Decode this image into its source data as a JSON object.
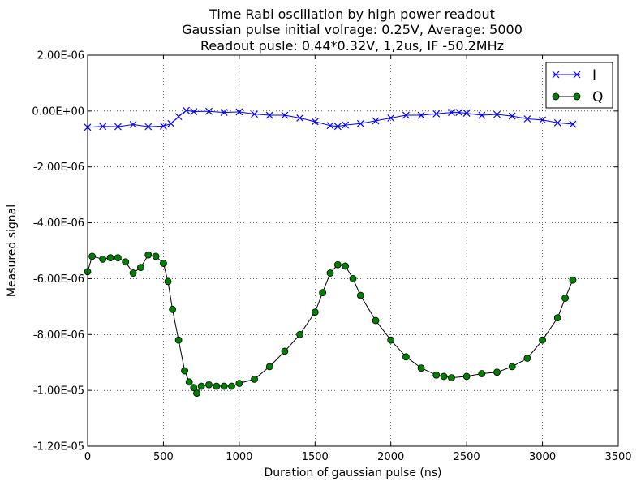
{
  "chart_data": {
    "type": "line",
    "title_lines": [
      "Time Rabi oscillation by high power readout",
      "Gaussian pulse initial volrage: 0.25V, Average: 5000",
      "Readout pusle: 0.44*0.32V, 1,2us, IF -50.2MHz"
    ],
    "xlabel": "Duration of gaussian pulse (ns)",
    "ylabel": "Measured signal",
    "xlim": [
      0,
      3500
    ],
    "ylim": [
      -1.2e-05,
      2e-06
    ],
    "x_ticks": [
      0,
      500,
      1000,
      1500,
      2000,
      2500,
      3000,
      3500
    ],
    "x_tick_labels": [
      "0",
      "500",
      "1000",
      "1500",
      "2000",
      "2500",
      "3000",
      "3500"
    ],
    "y_ticks": [
      2e-06,
      0,
      -2e-06,
      -4e-06,
      -6e-06,
      -8e-06,
      -1e-05,
      -1.2e-05
    ],
    "y_tick_labels": [
      "2.00E-06",
      "0.00E+00",
      "-2.00E-06",
      "-4.00E-06",
      "-6.00E-06",
      "-8.00E-06",
      "-1.00E-05",
      "-1.20E-05"
    ],
    "grid": true,
    "legend_position": "top-right",
    "series": [
      {
        "name": "I",
        "color": "#0000ff",
        "marker": "x",
        "x": [
          0,
          100,
          200,
          300,
          400,
          500,
          550,
          600,
          650,
          700,
          800,
          900,
          1000,
          1100,
          1200,
          1300,
          1400,
          1500,
          1600,
          1650,
          1700,
          1800,
          1900,
          2000,
          2100,
          2200,
          2300,
          2400,
          2450,
          2500,
          2600,
          2700,
          2800,
          2900,
          3000,
          3100,
          3200
        ],
        "y": [
          -5.8e-07,
          -5.5e-07,
          -5.6e-07,
          -4.8e-07,
          -5.6e-07,
          -5.4e-07,
          -4.5e-07,
          -2e-07,
          2e-08,
          -2e-08,
          -1e-08,
          -5e-08,
          -3e-08,
          -1.1e-07,
          -1.5e-07,
          -1.5e-07,
          -2.5e-07,
          -3.8e-07,
          -5.2e-07,
          -5.5e-07,
          -5e-07,
          -4.5e-07,
          -3.5e-07,
          -2.5e-07,
          -1.5e-07,
          -1.5e-07,
          -1e-07,
          -5e-08,
          -5e-08,
          -8e-08,
          -1.5e-07,
          -1.2e-07,
          -1.8e-07,
          -2.8e-07,
          -3.2e-07,
          -4.2e-07,
          -4.7e-07
        ]
      },
      {
        "name": "Q",
        "color": "#008000",
        "marker": "o",
        "x": [
          0,
          30,
          100,
          150,
          200,
          250,
          300,
          350,
          400,
          450,
          500,
          530,
          560,
          600,
          640,
          670,
          700,
          720,
          750,
          800,
          850,
          900,
          950,
          1000,
          1100,
          1200,
          1300,
          1400,
          1500,
          1550,
          1600,
          1650,
          1700,
          1750,
          1800,
          1900,
          2000,
          2100,
          2200,
          2300,
          2350,
          2400,
          2500,
          2600,
          2700,
          2800,
          2900,
          3000,
          3100,
          3150,
          3200
        ],
        "y": [
          -5.75e-06,
          -5.2e-06,
          -5.3e-06,
          -5.25e-06,
          -5.25e-06,
          -5.4e-06,
          -5.8e-06,
          -5.6e-06,
          -5.15e-06,
          -5.2e-06,
          -5.45e-06,
          -6.1e-06,
          -7.1e-06,
          -8.2e-06,
          -9.3e-06,
          -9.7e-06,
          -9.9e-06,
          -1.01e-05,
          -9.85e-06,
          -9.8e-06,
          -9.85e-06,
          -9.85e-06,
          -9.85e-06,
          -9.75e-06,
          -9.6e-06,
          -9.15e-06,
          -8.6e-06,
          -8e-06,
          -7.2e-06,
          -6.5e-06,
          -5.8e-06,
          -5.5e-06,
          -5.55e-06,
          -6e-06,
          -6.6e-06,
          -7.5e-06,
          -8.2e-06,
          -8.8e-06,
          -9.2e-06,
          -9.45e-06,
          -9.5e-06,
          -9.55e-06,
          -9.5e-06,
          -9.4e-06,
          -9.35e-06,
          -9.15e-06,
          -8.85e-06,
          -8.2e-06,
          -7.4e-06,
          -6.7e-06,
          -6.05e-06
        ]
      }
    ]
  }
}
